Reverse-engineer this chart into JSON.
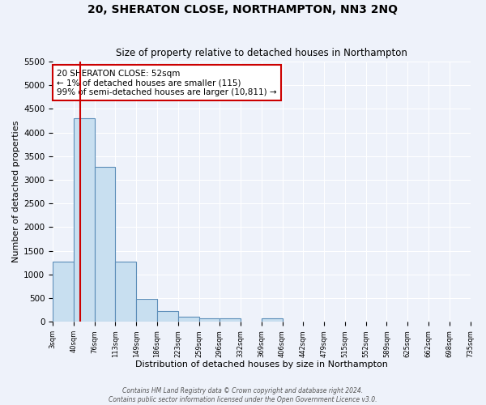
{
  "title": "20, SHERATON CLOSE, NORTHAMPTON, NN3 2NQ",
  "subtitle": "Size of property relative to detached houses in Northampton",
  "xlabel": "Distribution of detached houses by size in Northampton",
  "ylabel": "Number of detached properties",
  "tick_labels": [
    "3sqm",
    "40sqm",
    "76sqm",
    "113sqm",
    "149sqm",
    "186sqm",
    "223sqm",
    "259sqm",
    "296sqm",
    "332sqm",
    "369sqm",
    "406sqm",
    "442sqm",
    "479sqm",
    "515sqm",
    "552sqm",
    "589sqm",
    "625sqm",
    "662sqm",
    "698sqm",
    "735sqm"
  ],
  "bar_heights": [
    1270,
    4300,
    3280,
    1270,
    480,
    230,
    100,
    70,
    70,
    0,
    70,
    0,
    0,
    0,
    0,
    0,
    0,
    0,
    0,
    0
  ],
  "bar_color": "#c8dff0",
  "bar_edge_color": "#5b8db8",
  "ylim": [
    0,
    5500
  ],
  "yticks": [
    0,
    500,
    1000,
    1500,
    2000,
    2500,
    3000,
    3500,
    4000,
    4500,
    5000,
    5500
  ],
  "property_line_bin": 1,
  "property_line_color": "#cc0000",
  "annotation_text": "20 SHERATON CLOSE: 52sqm\n← 1% of detached houses are smaller (115)\n99% of semi-detached houses are larger (10,811) →",
  "annotation_box_color": "white",
  "annotation_box_edge_color": "#cc0000",
  "footer_line1": "Contains HM Land Registry data © Crown copyright and database right 2024.",
  "footer_line2": "Contains public sector information licensed under the Open Government Licence v3.0.",
  "background_color": "#eef2fa",
  "grid_color": "#ffffff"
}
